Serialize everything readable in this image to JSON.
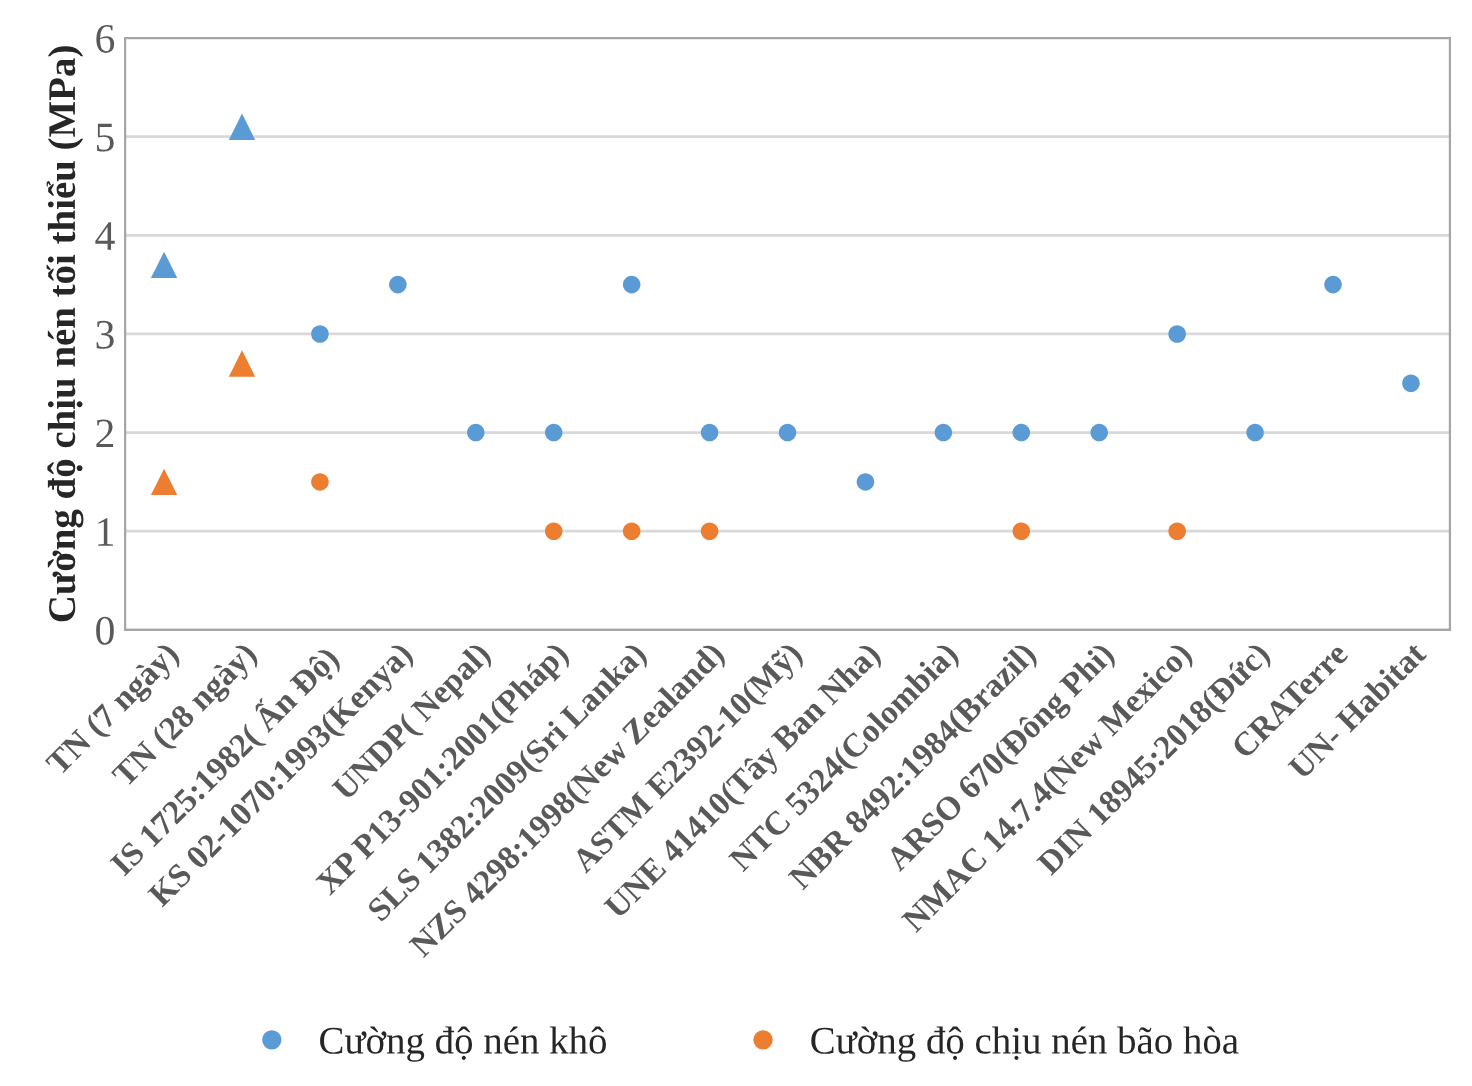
{
  "chart_data": {
    "type": "scatter",
    "ylabel": "Cường độ chịu nén tối thiểu (MPa)",
    "categories": [
      "TN (7 ngày)",
      "TN (28 ngày)",
      "IS 1725:1982( Ấn Độ)",
      "KS 02-1070:1993(Kenya)",
      "UNDP( Nepal)",
      "XP P13-901:2001(Pháp)",
      "SLS 1382:2009(Sri Lanka)",
      "NZS 4298:1998(New Zealand)",
      "ASTM E2392-10(Mỹ)",
      "UNE 41410(Tây Ban Nha)",
      "NTC 5324(Colombia)",
      "NBR 8492:1984(Brazil)",
      "ARSO 670(Đông Phi)",
      "NMAC 14.7.4(New Mexico)",
      "DIN 18945:2018(Đức)",
      "CRATerre",
      "UN- Habitat"
    ],
    "series": [
      {
        "name": "Cường độ nén khô",
        "color": "#5b9bd5",
        "marker": "circle",
        "values": [
          null,
          null,
          3,
          3.5,
          2,
          2,
          3.5,
          2,
          2,
          1.5,
          2,
          2,
          2,
          3,
          2,
          3.5,
          2.5
        ]
      },
      {
        "name": "Cường độ chịu nén bão hòa",
        "color": "#ed7d31",
        "marker": "circle",
        "values": [
          null,
          null,
          1.5,
          null,
          null,
          1,
          1,
          1,
          null,
          null,
          null,
          1,
          null,
          1,
          null,
          null,
          null
        ]
      },
      {
        "color": "#5b9bd5",
        "marker": "triangle",
        "values": [
          3.7,
          5.1,
          null,
          null,
          null,
          null,
          null,
          null,
          null,
          null,
          null,
          null,
          null,
          null,
          null,
          null,
          null
        ]
      },
      {
        "color": "#ed7d31",
        "marker": "triangle",
        "values": [
          1.5,
          2.7,
          null,
          null,
          null,
          null,
          null,
          null,
          null,
          null,
          null,
          null,
          null,
          null,
          null,
          null,
          null
        ]
      }
    ],
    "ylim": [
      0,
      6
    ],
    "yticks": [
      0,
      1,
      2,
      3,
      4,
      5,
      6
    ],
    "grid": "y",
    "legend": "bottom"
  }
}
